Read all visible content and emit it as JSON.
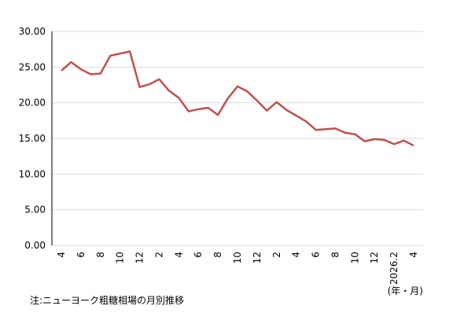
{
  "chart_data": {
    "type": "line",
    "categories": [
      "4",
      null,
      "6",
      null,
      "8",
      null,
      "10",
      null,
      "12",
      null,
      "2",
      null,
      "4",
      null,
      "6",
      null,
      "8",
      null,
      "10",
      null,
      "12",
      null,
      "2",
      null,
      "4",
      null,
      "6",
      null,
      "8",
      null,
      "10",
      null,
      "12",
      null,
      "2026.2",
      null,
      "4"
    ],
    "series": [
      {
        "color": "#c0504d",
        "values": [
          24.5,
          25.7,
          24.7,
          24.0,
          24.1,
          26.6,
          26.9,
          27.2,
          22.2,
          22.6,
          23.3,
          21.7,
          20.7,
          18.8,
          19.1,
          19.3,
          18.3,
          20.6,
          22.3,
          21.6,
          20.3,
          18.9,
          20.1,
          19.0,
          18.2,
          17.4,
          16.2,
          16.3,
          16.4,
          15.8,
          15.6,
          14.6,
          14.9,
          14.8,
          14.2,
          14.7,
          14.0
        ]
      }
    ],
    "ylim": [
      0,
      30
    ],
    "yticks": [
      {
        "value": 0,
        "label": "0.00"
      },
      {
        "value": 5,
        "label": "5.00"
      },
      {
        "value": 10,
        "label": "10.00"
      },
      {
        "value": 15,
        "label": "15.00"
      },
      {
        "value": 20,
        "label": "20.00"
      },
      {
        "value": 25,
        "label": "25.00"
      },
      {
        "value": 30,
        "label": "30.00"
      }
    ],
    "grid": true,
    "x_unit_label": "(年・月)",
    "note": "注:ニューヨーク粗糖相場の月別推移"
  }
}
